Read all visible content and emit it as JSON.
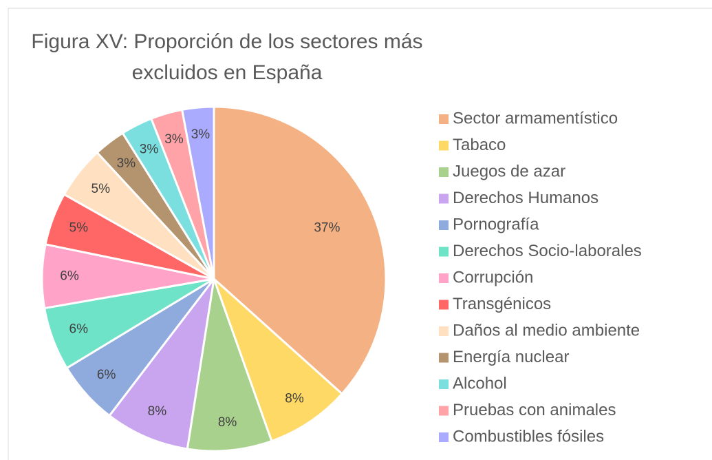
{
  "chart_data": {
    "type": "pie",
    "title": "Figura XV: Proporción de los sectores más excluidos en España",
    "categories": [
      "Sector armamentístico",
      "Tabaco",
      "Juegos de azar",
      "Derechos Humanos",
      "Pornografía",
      "Derechos Socio-laborales",
      "Corrupción",
      "Transgénicos",
      "Daños al medio ambiente",
      "Energía nuclear",
      "Alcohol",
      "Pruebas con animales",
      "Combustibles fósiles"
    ],
    "values": [
      37,
      8,
      8,
      8,
      6,
      6,
      6,
      5,
      5,
      3,
      3,
      3,
      3
    ],
    "value_labels": [
      "37%",
      "8%",
      "8%",
      "8%",
      "6%",
      "6%",
      "6%",
      "5%",
      "5%",
      "3%",
      "3%",
      "3%",
      "3%"
    ],
    "colors": [
      "#F4B183",
      "#FFD966",
      "#A9D18E",
      "#C8A5EE",
      "#8FAADC",
      "#6FE3C8",
      "#FFA3C8",
      "#FF6666",
      "#FFE0C0",
      "#B4946E",
      "#7BDFE0",
      "#FFA3A8",
      "#AAAAFF"
    ],
    "legend": "right"
  }
}
